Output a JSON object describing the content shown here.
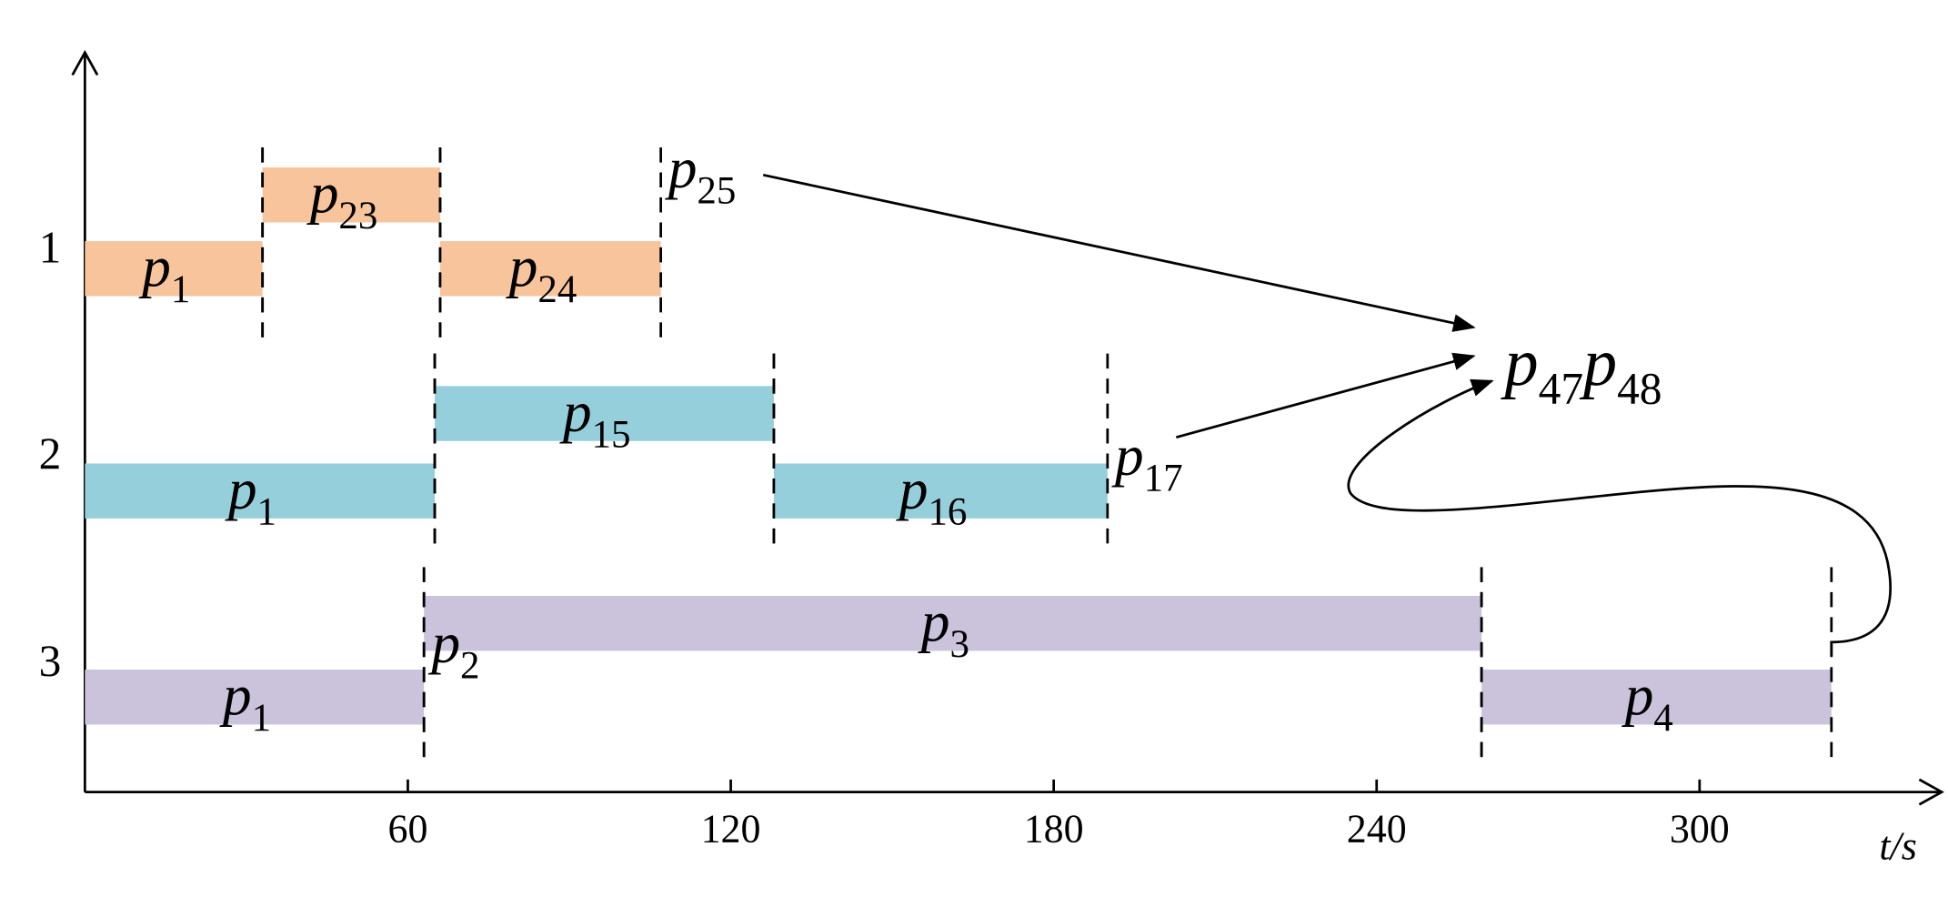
{
  "chart_data": {
    "type": "gantt",
    "xlabel": "t/s",
    "xlim": [
      0,
      345
    ],
    "xticks": [
      60,
      120,
      180,
      240,
      300
    ],
    "rows": [
      {
        "name": "1",
        "color": "#f8c49c",
        "tasks": [
          {
            "start": 0,
            "end": 33,
            "raised": false,
            "label": "p",
            "sub": "1"
          },
          {
            "start": 33,
            "end": 66,
            "raised": true,
            "label": "p",
            "sub": "23"
          },
          {
            "start": 66,
            "end": 107,
            "raised": false,
            "label": "p",
            "sub": "24"
          }
        ],
        "marker": {
          "at": 107,
          "label": "p",
          "sub": "25"
        }
      },
      {
        "name": "2",
        "color": "#96cfdc",
        "tasks": [
          {
            "start": 0,
            "end": 65,
            "raised": false,
            "label": "p",
            "sub": "1"
          },
          {
            "start": 65,
            "end": 128,
            "raised": true,
            "label": "p",
            "sub": "15"
          },
          {
            "start": 128,
            "end": 190,
            "raised": false,
            "label": "p",
            "sub": "16"
          }
        ],
        "marker": {
          "at": 190,
          "label": "p",
          "sub": "17"
        }
      },
      {
        "name": "3",
        "color": "#cbc3dc",
        "tasks": [
          {
            "start": 0,
            "end": 63,
            "raised": false,
            "label": "p",
            "sub": "1"
          },
          {
            "start": 63,
            "end": 259.5,
            "raised": true,
            "label": "p",
            "sub": "3"
          },
          {
            "start": 259.5,
            "end": 324.5,
            "raised": false,
            "label": "p",
            "sub": "4"
          }
        ],
        "marker": {
          "at": 63,
          "label": "p",
          "sub": "2"
        }
      }
    ],
    "target": [
      {
        "label": "p",
        "sub": "47"
      },
      {
        "label": "p",
        "sub": "48"
      }
    ]
  }
}
